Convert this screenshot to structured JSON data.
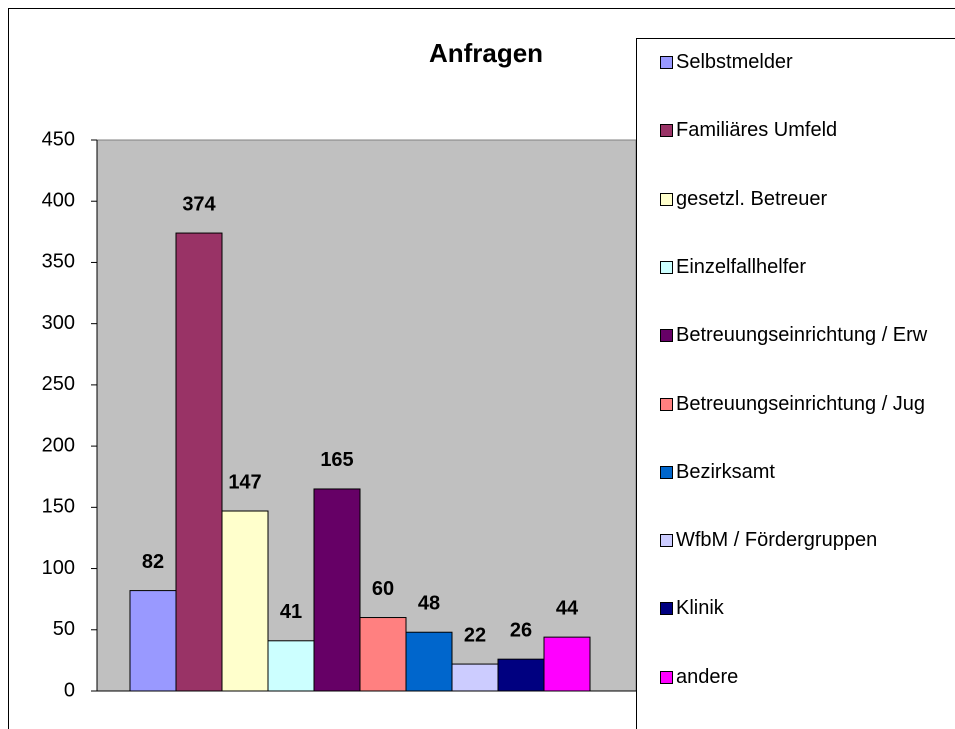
{
  "chart_data": {
    "type": "bar",
    "title": "Anfragen",
    "series": [
      {
        "name": "Selbstmelder",
        "color": "#9999ff",
        "values": [
          82
        ]
      },
      {
        "name": "Familiäres Umfeld",
        "color": "#993366",
        "values": [
          374
        ]
      },
      {
        "name": "gesetzl. Betreuer",
        "color": "#ffffcc",
        "values": [
          147
        ]
      },
      {
        "name": "Einzelfallhelfer",
        "color": "#ccffff",
        "values": [
          41
        ]
      },
      {
        "name": "Betreuungseinrichtung / Erw",
        "color": "#660066",
        "values": [
          165
        ]
      },
      {
        "name": "Betreuungseinrichtung / Jug",
        "color": "#ff8080",
        "values": [
          60
        ]
      },
      {
        "name": "Bezirksamt",
        "color": "#0066cc",
        "values": [
          48
        ]
      },
      {
        "name": "WfbM / Fördergruppen",
        "color": "#ccccff",
        "values": [
          22
        ]
      },
      {
        "name": "Klinik",
        "color": "#000080",
        "values": [
          26
        ]
      },
      {
        "name": "andere",
        "color": "#ff00ff",
        "values": [
          44
        ]
      }
    ],
    "ylim": [
      0,
      450
    ],
    "yticks": [
      0,
      50,
      100,
      150,
      200,
      250,
      300,
      350,
      400,
      450
    ],
    "grid": false
  }
}
